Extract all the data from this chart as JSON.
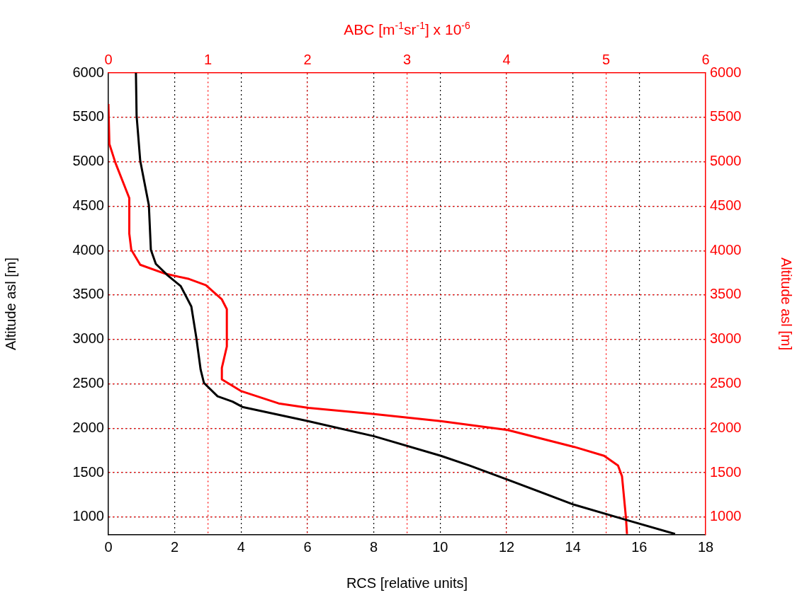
{
  "chart_data": {
    "type": "line",
    "xlabel": "RCS [relative units]",
    "x2label": "ABC [m$^{-1}$sr$^{-1}$] x 10$^{-6}$",
    "ylabel": "Altitude asl [m]",
    "y2label": "Altitude asl [m]",
    "xlim": [
      0,
      18
    ],
    "xticks": [
      0,
      2,
      4,
      6,
      8,
      10,
      12,
      14,
      16,
      18
    ],
    "x2lim": [
      0,
      6
    ],
    "x2ticks": [
      0,
      1,
      2,
      3,
      4,
      5,
      6
    ],
    "ylim": [
      800,
      6000
    ],
    "yticks": [
      1000,
      1500,
      2000,
      2500,
      3000,
      3500,
      4000,
      4500,
      5000,
      5500,
      6000
    ],
    "y2lim": [
      800,
      6000
    ],
    "y2ticks": [
      1000,
      1500,
      2000,
      2500,
      3000,
      3500,
      4000,
      4500,
      5000,
      5500,
      6000
    ],
    "grid": true,
    "marker": "none",
    "line_style": "solid",
    "series": [
      {
        "type": "line",
        "color": "#000000",
        "x": [
          0.83,
          0.85,
          0.96,
          1.22,
          1.28,
          1.43,
          1.79,
          2.18,
          2.5,
          2.65,
          2.78,
          2.88,
          3.29,
          3.74,
          4.04,
          6.02,
          8.01,
          10.02,
          10.89,
          12.04,
          14.03,
          15.59,
          17.08
        ],
        "values": [
          6000,
          5520,
          5010,
          4510,
          4010,
          3850,
          3720,
          3600,
          3370,
          3020,
          2660,
          2510,
          2360,
          2300,
          2240,
          2080,
          1910,
          1690,
          1580,
          1420,
          1140,
          970,
          810
        ]
      },
      {
        "type": "line",
        "axis": "x2",
        "color": "#ff0000",
        "x": [
          0,
          0.01,
          0.07,
          0.21,
          0.21,
          0.23,
          0.32,
          0.57,
          0.81,
          0.98,
          1.14,
          1.19,
          1.19,
          1.14,
          1.14,
          1.33,
          1.71,
          2.01,
          2.67,
          3.34,
          4.01,
          4.68,
          4.98,
          5.12,
          5.16,
          5.2,
          5.21
        ],
        "values": [
          5650,
          5200,
          4990,
          4590,
          4190,
          4010,
          3840,
          3740,
          3680,
          3610,
          3450,
          3340,
          2920,
          2680,
          2550,
          2420,
          2280,
          2230,
          2160,
          2080,
          1980,
          1790,
          1690,
          1580,
          1460,
          990,
          810
        ]
      }
    ]
  }
}
